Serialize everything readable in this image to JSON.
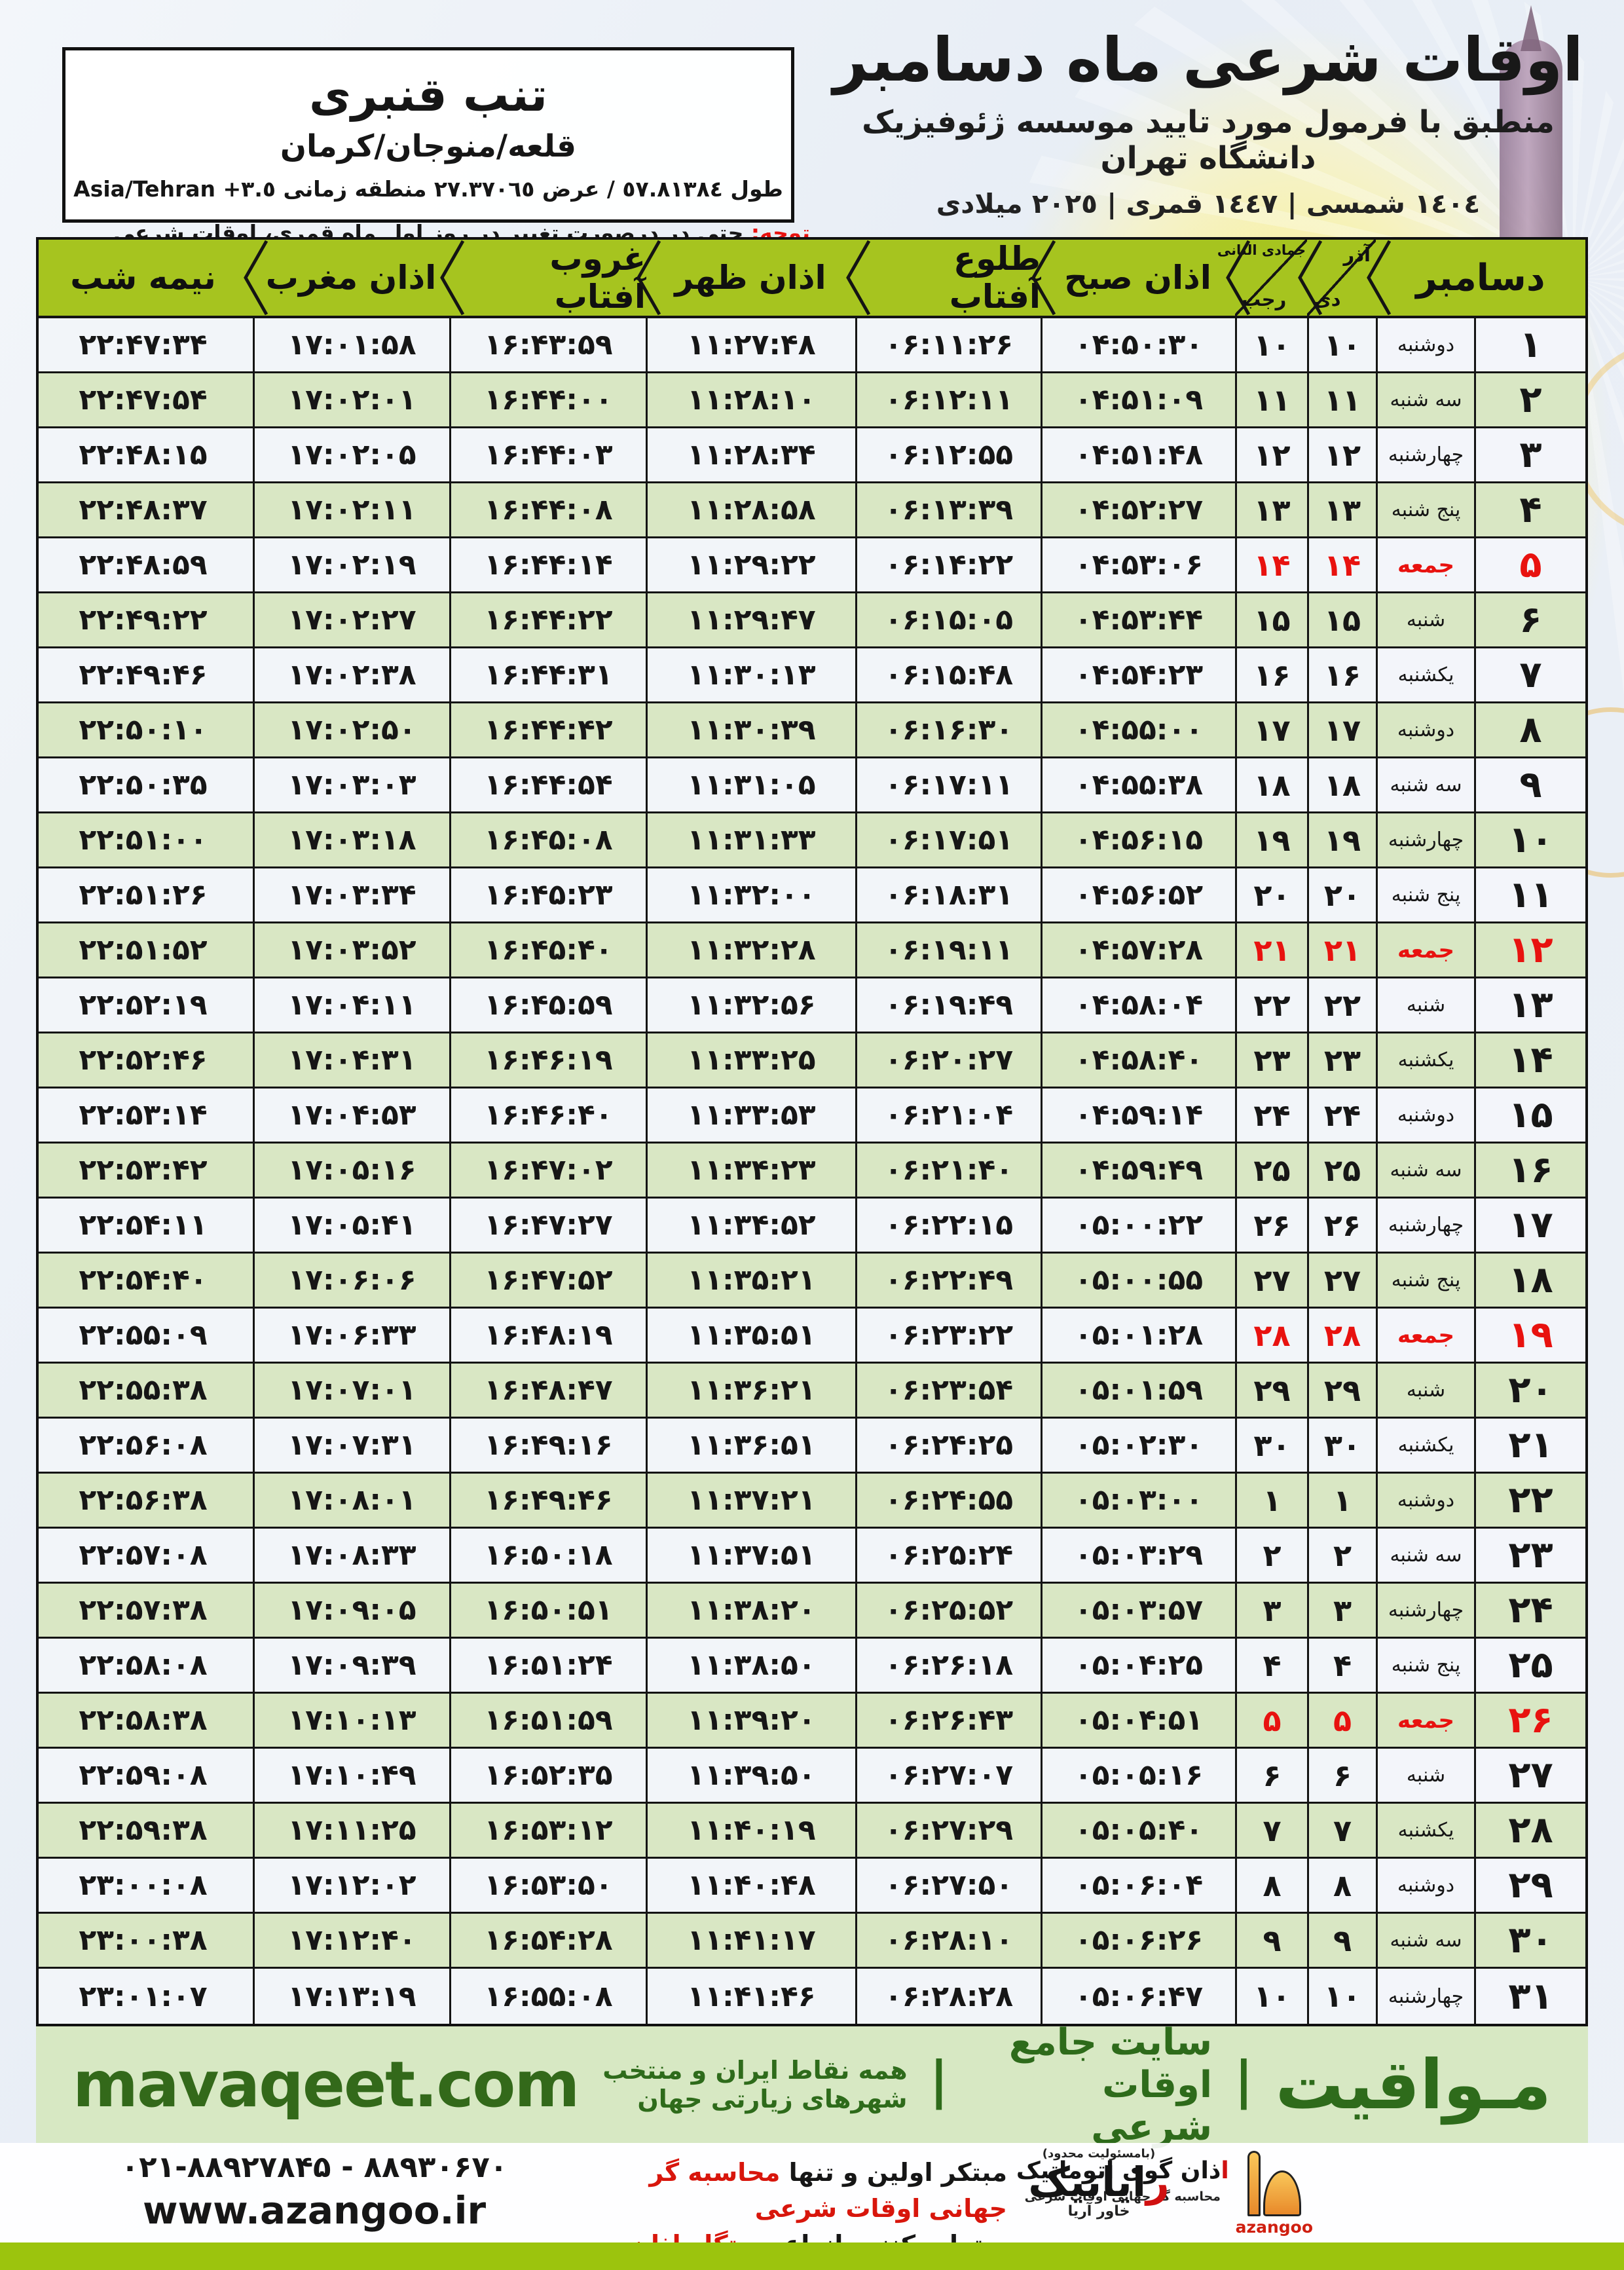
{
  "page": {
    "title": "اوقات شرعی ماه دسامبر",
    "subtitle": "منطبق با فرمول مورد تایید موسسه ژئوفیزیک دانشگاه تهران",
    "year_line": "١٤٠٤ شمسی | ١٤٤٧ قمری | ٢٠٢٥ میلادی"
  },
  "location_box": {
    "name": "تنب قنبری",
    "region": "قلعه/منوجان/کرمان",
    "coords": "طول ٥٧.٨١٣٨٤ / عرض ٢٧.٣٧٠٦٥ منطقه زمانی",
    "timezone": "Asia/Tehran +٣.٥"
  },
  "notice": {
    "label": "توجه:",
    "text": " حتی در درصورت تغییر در روز اول ماه قمری، اوقات شرعی کماکان برای روزهای شمسی و میلادی معتبر است."
  },
  "table": {
    "headers": {
      "december": "دسامبر",
      "shamsi_top": "آذر",
      "shamsi_bottom": "دی",
      "hijri_top": "جمادی الثانی",
      "hijri_bottom": "رجب",
      "sobh": "اذان صبح",
      "tolu": "طلوع آفتاب",
      "zohr": "اذان ظهر",
      "ghorub": "غروب آفتاب",
      "maghreb": "اذان مغرب",
      "nimeshab": "نیمه شب"
    },
    "rows": [
      {
        "day": "۱",
        "week": "دوشنبه",
        "shamsi": "۱۰",
        "hijri": "۱۰",
        "sobh": "۰۴:۵۰:۳۰",
        "tolu": "۰۶:۱۱:۲۶",
        "zohr": "۱۱:۲۷:۴۸",
        "ghorub": "۱۶:۴۳:۵۹",
        "maghreb": "۱۷:۰۱:۵۸",
        "nime": "۲۲:۴۷:۳۴",
        "friday": false
      },
      {
        "day": "۲",
        "week": "سه شنبه",
        "shamsi": "۱۱",
        "hijri": "۱۱",
        "sobh": "۰۴:۵۱:۰۹",
        "tolu": "۰۶:۱۲:۱۱",
        "zohr": "۱۱:۲۸:۱۰",
        "ghorub": "۱۶:۴۴:۰۰",
        "maghreb": "۱۷:۰۲:۰۱",
        "nime": "۲۲:۴۷:۵۴",
        "friday": false
      },
      {
        "day": "۳",
        "week": "چهارشنبه",
        "shamsi": "۱۲",
        "hijri": "۱۲",
        "sobh": "۰۴:۵۱:۴۸",
        "tolu": "۰۶:۱۲:۵۵",
        "zohr": "۱۱:۲۸:۳۴",
        "ghorub": "۱۶:۴۴:۰۳",
        "maghreb": "۱۷:۰۲:۰۵",
        "nime": "۲۲:۴۸:۱۵",
        "friday": false
      },
      {
        "day": "۴",
        "week": "پنج شنبه",
        "shamsi": "۱۳",
        "hijri": "۱۳",
        "sobh": "۰۴:۵۲:۲۷",
        "tolu": "۰۶:۱۳:۳۹",
        "zohr": "۱۱:۲۸:۵۸",
        "ghorub": "۱۶:۴۴:۰۸",
        "maghreb": "۱۷:۰۲:۱۱",
        "nime": "۲۲:۴۸:۳۷",
        "friday": false
      },
      {
        "day": "۵",
        "week": "جمعه",
        "shamsi": "۱۴",
        "hijri": "۱۴",
        "sobh": "۰۴:۵۳:۰۶",
        "tolu": "۰۶:۱۴:۲۲",
        "zohr": "۱۱:۲۹:۲۲",
        "ghorub": "۱۶:۴۴:۱۴",
        "maghreb": "۱۷:۰۲:۱۹",
        "nime": "۲۲:۴۸:۵۹",
        "friday": true
      },
      {
        "day": "۶",
        "week": "شنبه",
        "shamsi": "۱۵",
        "hijri": "۱۵",
        "sobh": "۰۴:۵۳:۴۴",
        "tolu": "۰۶:۱۵:۰۵",
        "zohr": "۱۱:۲۹:۴۷",
        "ghorub": "۱۶:۴۴:۲۲",
        "maghreb": "۱۷:۰۲:۲۷",
        "nime": "۲۲:۴۹:۲۲",
        "friday": false
      },
      {
        "day": "۷",
        "week": "یکشنبه",
        "shamsi": "۱۶",
        "hijri": "۱۶",
        "sobh": "۰۴:۵۴:۲۳",
        "tolu": "۰۶:۱۵:۴۸",
        "zohr": "۱۱:۳۰:۱۳",
        "ghorub": "۱۶:۴۴:۳۱",
        "maghreb": "۱۷:۰۲:۳۸",
        "nime": "۲۲:۴۹:۴۶",
        "friday": false
      },
      {
        "day": "۸",
        "week": "دوشنبه",
        "shamsi": "۱۷",
        "hijri": "۱۷",
        "sobh": "۰۴:۵۵:۰۰",
        "tolu": "۰۶:۱۶:۳۰",
        "zohr": "۱۱:۳۰:۳۹",
        "ghorub": "۱۶:۴۴:۴۲",
        "maghreb": "۱۷:۰۲:۵۰",
        "nime": "۲۲:۵۰:۱۰",
        "friday": false
      },
      {
        "day": "۹",
        "week": "سه شنبه",
        "shamsi": "۱۸",
        "hijri": "۱۸",
        "sobh": "۰۴:۵۵:۳۸",
        "tolu": "۰۶:۱۷:۱۱",
        "zohr": "۱۱:۳۱:۰۵",
        "ghorub": "۱۶:۴۴:۵۴",
        "maghreb": "۱۷:۰۳:۰۳",
        "nime": "۲۲:۵۰:۳۵",
        "friday": false
      },
      {
        "day": "۱۰",
        "week": "چهارشنبه",
        "shamsi": "۱۹",
        "hijri": "۱۹",
        "sobh": "۰۴:۵۶:۱۵",
        "tolu": "۰۶:۱۷:۵۱",
        "zohr": "۱۱:۳۱:۳۳",
        "ghorub": "۱۶:۴۵:۰۸",
        "maghreb": "۱۷:۰۳:۱۸",
        "nime": "۲۲:۵۱:۰۰",
        "friday": false
      },
      {
        "day": "۱۱",
        "week": "پنج شنبه",
        "shamsi": "۲۰",
        "hijri": "۲۰",
        "sobh": "۰۴:۵۶:۵۲",
        "tolu": "۰۶:۱۸:۳۱",
        "zohr": "۱۱:۳۲:۰۰",
        "ghorub": "۱۶:۴۵:۲۳",
        "maghreb": "۱۷:۰۳:۳۴",
        "nime": "۲۲:۵۱:۲۶",
        "friday": false
      },
      {
        "day": "۱۲",
        "week": "جمعه",
        "shamsi": "۲۱",
        "hijri": "۲۱",
        "sobh": "۰۴:۵۷:۲۸",
        "tolu": "۰۶:۱۹:۱۱",
        "zohr": "۱۱:۳۲:۲۸",
        "ghorub": "۱۶:۴۵:۴۰",
        "maghreb": "۱۷:۰۳:۵۲",
        "nime": "۲۲:۵۱:۵۲",
        "friday": true
      },
      {
        "day": "۱۳",
        "week": "شنبه",
        "shamsi": "۲۲",
        "hijri": "۲۲",
        "sobh": "۰۴:۵۸:۰۴",
        "tolu": "۰۶:۱۹:۴۹",
        "zohr": "۱۱:۳۲:۵۶",
        "ghorub": "۱۶:۴۵:۵۹",
        "maghreb": "۱۷:۰۴:۱۱",
        "nime": "۲۲:۵۲:۱۹",
        "friday": false
      },
      {
        "day": "۱۴",
        "week": "یکشنبه",
        "shamsi": "۲۳",
        "hijri": "۲۳",
        "sobh": "۰۴:۵۸:۴۰",
        "tolu": "۰۶:۲۰:۲۷",
        "zohr": "۱۱:۳۳:۲۵",
        "ghorub": "۱۶:۴۶:۱۹",
        "maghreb": "۱۷:۰۴:۳۱",
        "nime": "۲۲:۵۲:۴۶",
        "friday": false
      },
      {
        "day": "۱۵",
        "week": "دوشنبه",
        "shamsi": "۲۴",
        "hijri": "۲۴",
        "sobh": "۰۴:۵۹:۱۴",
        "tolu": "۰۶:۲۱:۰۴",
        "zohr": "۱۱:۳۳:۵۳",
        "ghorub": "۱۶:۴۶:۴۰",
        "maghreb": "۱۷:۰۴:۵۳",
        "nime": "۲۲:۵۳:۱۴",
        "friday": false
      },
      {
        "day": "۱۶",
        "week": "سه شنبه",
        "shamsi": "۲۵",
        "hijri": "۲۵",
        "sobh": "۰۴:۵۹:۴۹",
        "tolu": "۰۶:۲۱:۴۰",
        "zohr": "۱۱:۳۴:۲۳",
        "ghorub": "۱۶:۴۷:۰۲",
        "maghreb": "۱۷:۰۵:۱۶",
        "nime": "۲۲:۵۳:۴۲",
        "friday": false
      },
      {
        "day": "۱۷",
        "week": "چهارشنبه",
        "shamsi": "۲۶",
        "hijri": "۲۶",
        "sobh": "۰۵:۰۰:۲۲",
        "tolu": "۰۶:۲۲:۱۵",
        "zohr": "۱۱:۳۴:۵۲",
        "ghorub": "۱۶:۴۷:۲۷",
        "maghreb": "۱۷:۰۵:۴۱",
        "nime": "۲۲:۵۴:۱۱",
        "friday": false
      },
      {
        "day": "۱۸",
        "week": "پنج شنبه",
        "shamsi": "۲۷",
        "hijri": "۲۷",
        "sobh": "۰۵:۰۰:۵۵",
        "tolu": "۰۶:۲۲:۴۹",
        "zohr": "۱۱:۳۵:۲۱",
        "ghorub": "۱۶:۴۷:۵۲",
        "maghreb": "۱۷:۰۶:۰۶",
        "nime": "۲۲:۵۴:۴۰",
        "friday": false
      },
      {
        "day": "۱۹",
        "week": "جمعه",
        "shamsi": "۲۸",
        "hijri": "۲۸",
        "sobh": "۰۵:۰۱:۲۸",
        "tolu": "۰۶:۲۳:۲۲",
        "zohr": "۱۱:۳۵:۵۱",
        "ghorub": "۱۶:۴۸:۱۹",
        "maghreb": "۱۷:۰۶:۳۳",
        "nime": "۲۲:۵۵:۰۹",
        "friday": true
      },
      {
        "day": "۲۰",
        "week": "شنبه",
        "shamsi": "۲۹",
        "hijri": "۲۹",
        "sobh": "۰۵:۰۱:۵۹",
        "tolu": "۰۶:۲۳:۵۴",
        "zohr": "۱۱:۳۶:۲۱",
        "ghorub": "۱۶:۴۸:۴۷",
        "maghreb": "۱۷:۰۷:۰۱",
        "nime": "۲۲:۵۵:۳۸",
        "friday": false
      },
      {
        "day": "۲۱",
        "week": "یکشنبه",
        "shamsi": "۳۰",
        "hijri": "۳۰",
        "sobh": "۰۵:۰۲:۳۰",
        "tolu": "۰۶:۲۴:۲۵",
        "zohr": "۱۱:۳۶:۵۱",
        "ghorub": "۱۶:۴۹:۱۶",
        "maghreb": "۱۷:۰۷:۳۱",
        "nime": "۲۲:۵۶:۰۸",
        "friday": false
      },
      {
        "day": "۲۲",
        "week": "دوشنبه",
        "shamsi": "۱",
        "hijri": "۱",
        "sobh": "۰۵:۰۳:۰۰",
        "tolu": "۰۶:۲۴:۵۵",
        "zohr": "۱۱:۳۷:۲۱",
        "ghorub": "۱۶:۴۹:۴۶",
        "maghreb": "۱۷:۰۸:۰۱",
        "nime": "۲۲:۵۶:۳۸",
        "friday": false
      },
      {
        "day": "۲۳",
        "week": "سه شنبه",
        "shamsi": "۲",
        "hijri": "۲",
        "sobh": "۰۵:۰۳:۲۹",
        "tolu": "۰۶:۲۵:۲۴",
        "zohr": "۱۱:۳۷:۵۱",
        "ghorub": "۱۶:۵۰:۱۸",
        "maghreb": "۱۷:۰۸:۳۳",
        "nime": "۲۲:۵۷:۰۸",
        "friday": false
      },
      {
        "day": "۲۴",
        "week": "چهارشنبه",
        "shamsi": "۳",
        "hijri": "۳",
        "sobh": "۰۵:۰۳:۵۷",
        "tolu": "۰۶:۲۵:۵۲",
        "zohr": "۱۱:۳۸:۲۰",
        "ghorub": "۱۶:۵۰:۵۱",
        "maghreb": "۱۷:۰۹:۰۵",
        "nime": "۲۲:۵۷:۳۸",
        "friday": false
      },
      {
        "day": "۲۵",
        "week": "پنج شنبه",
        "shamsi": "۴",
        "hijri": "۴",
        "sobh": "۰۵:۰۴:۲۵",
        "tolu": "۰۶:۲۶:۱۸",
        "zohr": "۱۱:۳۸:۵۰",
        "ghorub": "۱۶:۵۱:۲۴",
        "maghreb": "۱۷:۰۹:۳۹",
        "nime": "۲۲:۵۸:۰۸",
        "friday": false
      },
      {
        "day": "۲۶",
        "week": "جمعه",
        "shamsi": "۵",
        "hijri": "۵",
        "sobh": "۰۵:۰۴:۵۱",
        "tolu": "۰۶:۲۶:۴۳",
        "zohr": "۱۱:۳۹:۲۰",
        "ghorub": "۱۶:۵۱:۵۹",
        "maghreb": "۱۷:۱۰:۱۳",
        "nime": "۲۲:۵۸:۳۸",
        "friday": true
      },
      {
        "day": "۲۷",
        "week": "شنبه",
        "shamsi": "۶",
        "hijri": "۶",
        "sobh": "۰۵:۰۵:۱۶",
        "tolu": "۰۶:۲۷:۰۷",
        "zohr": "۱۱:۳۹:۵۰",
        "ghorub": "۱۶:۵۲:۳۵",
        "maghreb": "۱۷:۱۰:۴۹",
        "nime": "۲۲:۵۹:۰۸",
        "friday": false
      },
      {
        "day": "۲۸",
        "week": "یکشنبه",
        "shamsi": "۷",
        "hijri": "۷",
        "sobh": "۰۵:۰۵:۴۰",
        "tolu": "۰۶:۲۷:۲۹",
        "zohr": "۱۱:۴۰:۱۹",
        "ghorub": "۱۶:۵۳:۱۲",
        "maghreb": "۱۷:۱۱:۲۵",
        "nime": "۲۲:۵۹:۳۸",
        "friday": false
      },
      {
        "day": "۲۹",
        "week": "دوشنبه",
        "shamsi": "۸",
        "hijri": "۸",
        "sobh": "۰۵:۰۶:۰۴",
        "tolu": "۰۶:۲۷:۵۰",
        "zohr": "۱۱:۴۰:۴۸",
        "ghorub": "۱۶:۵۳:۵۰",
        "maghreb": "۱۷:۱۲:۰۲",
        "nime": "۲۳:۰۰:۰۸",
        "friday": false
      },
      {
        "day": "۳۰",
        "week": "سه شنبه",
        "shamsi": "۹",
        "hijri": "۹",
        "sobh": "۰۵:۰۶:۲۶",
        "tolu": "۰۶:۲۸:۱۰",
        "zohr": "۱۱:۴۱:۱۷",
        "ghorub": "۱۶:۵۴:۲۸",
        "maghreb": "۱۷:۱۲:۴۰",
        "nime": "۲۳:۰۰:۳۸",
        "friday": false
      },
      {
        "day": "۳۱",
        "week": "چهارشنبه",
        "shamsi": "۱۰",
        "hijri": "۱۰",
        "sobh": "۰۵:۰۶:۴۷",
        "tolu": "۰۶:۲۸:۲۸",
        "zohr": "۱۱:۴۱:۴۶",
        "ghorub": "۱۶:۵۵:۰۸",
        "maghreb": "۱۷:۱۳:۱۹",
        "nime": "۲۳:۰۱:۰۷",
        "friday": false
      }
    ]
  },
  "footer": {
    "brand": "مـواقیت",
    "sep": "|",
    "site_desc": "سایت جامع اوقات شرعی",
    "coverage": "همه نقاط ایران و منتخب شهرهای زیارتی جهان",
    "domain": "mavaqeet.com",
    "azangoo_title_initial": "ا",
    "azangoo_title_rest": "ذان گوی اتوماتیک",
    "azangoo_subtitle": "محاسبه گر جهانی اوقات شرعی",
    "azangoo_latin": "azangoo",
    "rayanik_small": "(بامسئولیت محدود)",
    "rayanik_initial": "ر",
    "rayanik_rest": "ایانیک",
    "rayanik_suffix": "خاور آریا",
    "promo_line1_black": "مبتکر اولین و تنها ",
    "promo_line1_red": "محاسبه گر جهانی اوقات شرعی",
    "promo_line2_black": "و تولید کننده انواع ",
    "promo_line2_red": "دستگاه اذان گوی تمام خودکار ماهواره ای",
    "phone": "۰۲۱-۸۸۹۲۷۸۴۵ - ۸۸۹۳۰۶۷۰",
    "website": "www.azangoo.ir"
  },
  "colors": {
    "header_green": "#a6c41f",
    "row_green": "#d9e7c4",
    "row_white": "#f2f5f9",
    "friday_red": "#e8120f",
    "dark_green": "#2e6b1b",
    "strip_green": "#9cc40d"
  }
}
